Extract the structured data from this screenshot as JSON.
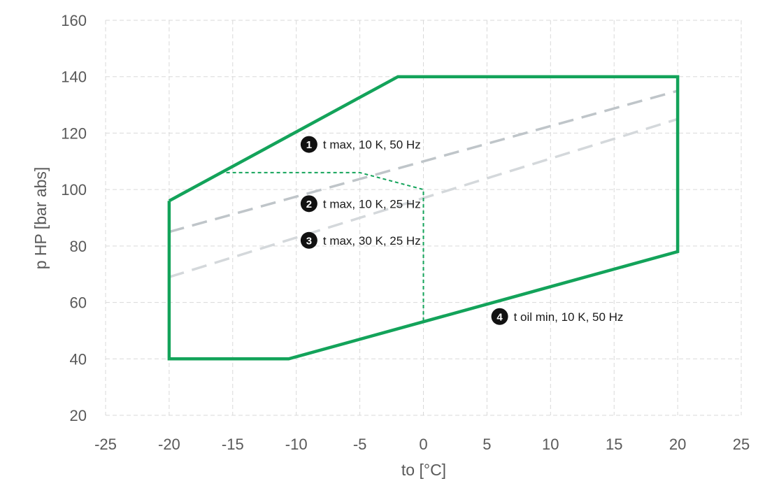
{
  "chart_data": {
    "type": "line",
    "title": "",
    "xlabel": "to [°C]",
    "ylabel": "p HP [bar abs]",
    "xlim": [
      -25,
      25
    ],
    "ylim": [
      20,
      160
    ],
    "x_ticks": [
      -25,
      -20,
      -15,
      -10,
      -5,
      0,
      5,
      10,
      15,
      20,
      25
    ],
    "y_ticks": [
      20,
      40,
      60,
      80,
      100,
      120,
      140,
      160
    ],
    "grid": true,
    "colors": {
      "envelope": "#13a35a",
      "ref_dark": "#bfc5c9",
      "ref_light": "#d4d8db",
      "grid": "#d9d9d9",
      "marker": "#111111"
    },
    "series": [
      {
        "style": "solid-green",
        "x": [
          -20,
          -20,
          -10.6,
          20,
          20,
          -2,
          -20
        ],
        "y": [
          96,
          40,
          40,
          78,
          140,
          140,
          96
        ]
      },
      {
        "style": "dashed-green",
        "x": [
          -16,
          -5,
          0,
          0
        ],
        "y": [
          106,
          106,
          100,
          53
        ]
      },
      {
        "style": "dashed-gray-dark",
        "x": [
          -20,
          20
        ],
        "y": [
          85,
          135
        ]
      },
      {
        "style": "dashed-gray-light",
        "x": [
          -20,
          20
        ],
        "y": [
          69,
          125
        ]
      }
    ],
    "annotations": [
      {
        "number": "1",
        "text": "t max, 10 K, 50 Hz",
        "x": -9,
        "y": 116
      },
      {
        "number": "2",
        "text": "t max, 10 K, 25 Hz",
        "x": -9,
        "y": 95
      },
      {
        "number": "3",
        "text": "t max, 30 K, 25 Hz",
        "x": -9,
        "y": 82
      },
      {
        "number": "4",
        "text": "t oil min, 10 K, 50 Hz",
        "x": 6,
        "y": 55
      }
    ]
  }
}
